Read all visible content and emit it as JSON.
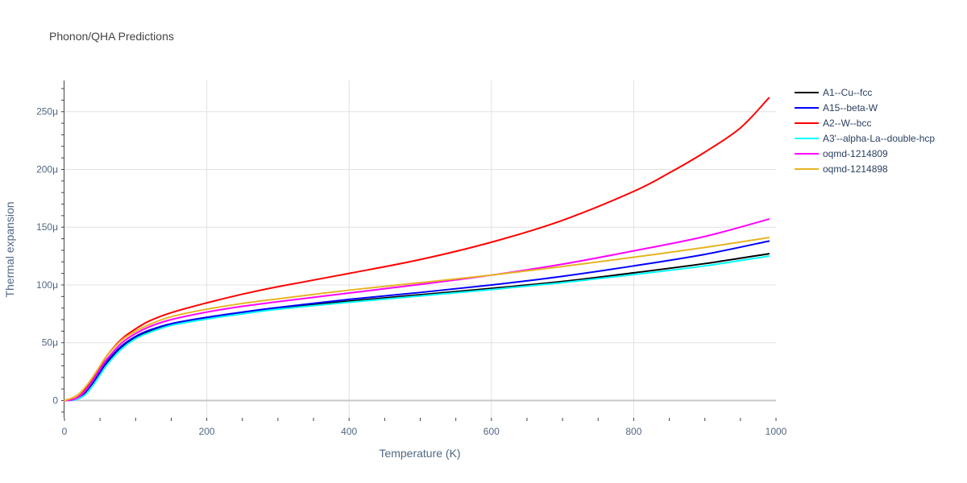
{
  "chart_data": {
    "type": "line",
    "title": "Phonon/QHA Predictions",
    "xlabel": "Temperature (K)",
    "ylabel": "Thermal expansion",
    "xlim": [
      0,
      1000
    ],
    "ylim": [
      -15,
      277
    ],
    "xticks": [
      0,
      200,
      400,
      600,
      800,
      1000
    ],
    "xtick_labels": [
      "0",
      "200",
      "400",
      "600",
      "800",
      "1000"
    ],
    "yticks": [
      0,
      50,
      100,
      150,
      200,
      250
    ],
    "ytick_labels": [
      "0",
      "50μ",
      "100μ",
      "150μ",
      "200μ",
      "250μ"
    ],
    "y_unit_multiplier": 1e-06,
    "grid": true,
    "legend_position": "top-right outside",
    "series": [
      {
        "name": "A1--Cu--fcc",
        "color": "#000000",
        "x": [
          0,
          10,
          20,
          30,
          40,
          50,
          60,
          80,
          100,
          120,
          150,
          200,
          250,
          300,
          400,
          500,
          600,
          700,
          800,
          900,
          990
        ],
        "y": [
          0,
          0.2,
          2,
          7,
          15,
          24,
          33,
          46,
          54.5,
          60,
          65.5,
          71,
          75.5,
          79.5,
          86,
          91.5,
          97,
          103,
          110.5,
          118.5,
          127
        ]
      },
      {
        "name": "A15--beta-W",
        "color": "#0000ff",
        "x": [
          0,
          10,
          20,
          30,
          40,
          50,
          60,
          80,
          100,
          120,
          150,
          200,
          250,
          300,
          400,
          500,
          600,
          700,
          800,
          900,
          990
        ],
        "y": [
          0,
          0.3,
          2.5,
          8,
          16,
          25,
          34,
          47,
          55.5,
          61,
          66.5,
          72,
          76.5,
          80.5,
          87.5,
          93.5,
          100,
          107.5,
          116.5,
          126.5,
          138
        ]
      },
      {
        "name": "A2--W--bcc",
        "color": "#ff0000",
        "x": [
          0,
          10,
          20,
          30,
          40,
          50,
          60,
          80,
          100,
          120,
          150,
          200,
          250,
          300,
          400,
          500,
          600,
          700,
          800,
          850,
          900,
          950,
          990
        ],
        "y": [
          0,
          0.5,
          3.5,
          10,
          19,
          29,
          39,
          53,
          62,
          69,
          76,
          84.5,
          92,
          98.5,
          110,
          122,
          137,
          156,
          181,
          197,
          215,
          236,
          262
        ]
      },
      {
        "name": "A3'--alpha-La--double-hcp",
        "color": "#00ffff",
        "x": [
          0,
          10,
          20,
          30,
          40,
          50,
          60,
          80,
          100,
          120,
          150,
          200,
          250,
          300,
          400,
          500,
          600,
          700,
          800,
          900,
          990
        ],
        "y": [
          0,
          0.1,
          1.5,
          5.5,
          13,
          22,
          31,
          44.5,
          53.5,
          59,
          65,
          70.5,
          75,
          79,
          85,
          90.5,
          96,
          102,
          109,
          116.5,
          125
        ]
      },
      {
        "name": "oqmd-1214809",
        "color": "#ff00ff",
        "x": [
          0,
          10,
          20,
          30,
          40,
          50,
          60,
          80,
          100,
          120,
          150,
          200,
          250,
          300,
          400,
          500,
          600,
          700,
          800,
          900,
          990
        ],
        "y": [
          0,
          0.4,
          3,
          9,
          17.5,
          27,
          36,
          49.5,
          58,
          64,
          70,
          76.5,
          81.5,
          85.5,
          93,
          100.5,
          108.5,
          118,
          129.5,
          142,
          157
        ]
      },
      {
        "name": "oqmd-1214898",
        "color": "#e6b422",
        "x": [
          0,
          10,
          20,
          30,
          40,
          50,
          60,
          80,
          100,
          120,
          150,
          200,
          250,
          300,
          400,
          500,
          600,
          700,
          800,
          900,
          990
        ],
        "y": [
          0,
          2,
          5.5,
          12,
          20.5,
          30,
          39,
          52,
          60,
          66,
          72.5,
          79,
          84,
          88,
          95.5,
          102,
          108.5,
          116,
          124,
          132.5,
          141
        ]
      }
    ]
  }
}
